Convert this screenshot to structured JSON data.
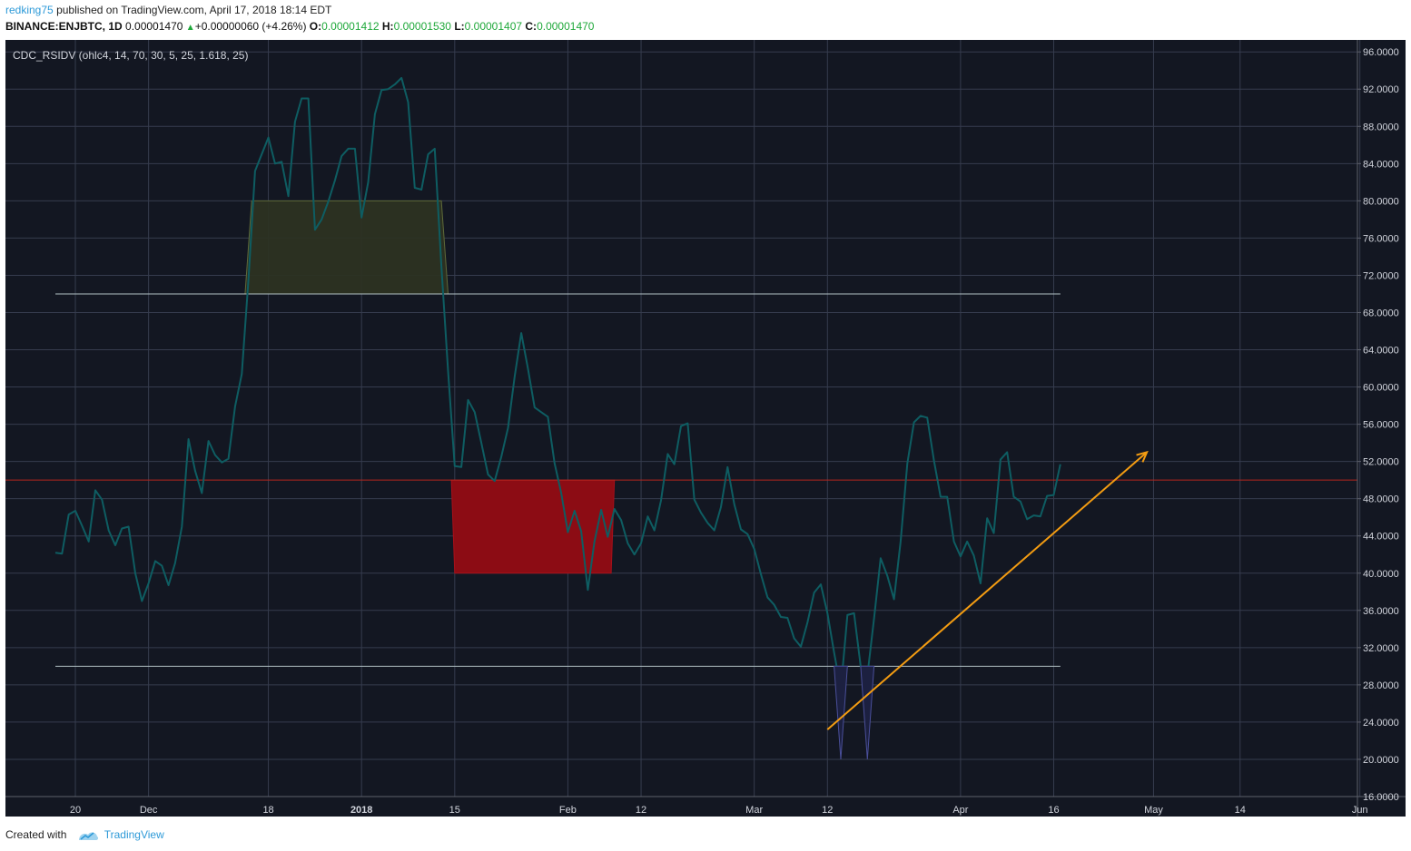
{
  "header": {
    "author": "redking75",
    "published_text": "published on TradingView.com, April 17, 2018 18:14 EDT",
    "symbol": "BINANCE:ENJBTC, 1D",
    "price": "0.00001470",
    "change": "+0.00000060 (+4.26%)",
    "open_label": "O:",
    "open": "0.00001412",
    "high_label": "H:",
    "high": "0.00001530",
    "low_label": "L:",
    "low": "0.00001407",
    "close_label": "C:",
    "close": "0.00001470"
  },
  "indicator_label": "CDC_RSIDV (ohlc4, 14, 70, 30, 5, 25, 1.618, 25)",
  "footer": {
    "created_with": "Created with",
    "brand": "TradingView"
  },
  "colors": {
    "background": "#131722",
    "grid": "#363c4e",
    "rsi_line": "#0e5d62",
    "overbought_zone": "#2c3122",
    "oversold_zone": "#8c0c14",
    "midline": "#b5261e",
    "bound_line": "#b2c1c4",
    "arrow": "#f39c12",
    "divergence": "#4a4f9a",
    "axis_text": "#d1d4dc"
  },
  "chart_data": {
    "type": "line",
    "y_axis_ticks": [
      "96.0000",
      "92.0000",
      "88.0000",
      "84.0000",
      "80.0000",
      "76.0000",
      "72.0000",
      "68.0000",
      "64.0000",
      "60.0000",
      "56.0000",
      "52.0000",
      "48.0000",
      "44.0000",
      "40.0000",
      "36.0000",
      "32.0000",
      "28.0000",
      "24.0000",
      "20.0000",
      "16.0000"
    ],
    "ylim": [
      16,
      96
    ],
    "x_axis_ticks": [
      {
        "label": "20",
        "day": 0,
        "bold": false
      },
      {
        "label": "Dec",
        "day": 11,
        "bold": false
      },
      {
        "label": "18",
        "day": 29,
        "bold": false
      },
      {
        "label": "2018",
        "day": 43,
        "bold": true
      },
      {
        "label": "15",
        "day": 57,
        "bold": false
      },
      {
        "label": "Feb",
        "day": 74,
        "bold": false
      },
      {
        "label": "12",
        "day": 85,
        "bold": false
      },
      {
        "label": "Mar",
        "day": 102,
        "bold": false
      },
      {
        "label": "12",
        "day": 113,
        "bold": false
      },
      {
        "label": "Apr",
        "day": 133,
        "bold": false
      },
      {
        "label": "16",
        "day": 147,
        "bold": false
      },
      {
        "label": "May",
        "day": 162,
        "bold": false
      },
      {
        "label": "14",
        "day": 175,
        "bold": false
      },
      {
        "label": "Jun",
        "day": 193,
        "bold": false
      }
    ],
    "xlim": [
      -11,
      203
    ],
    "series": [
      {
        "values": [
          [
            -3,
            42.2
          ],
          [
            -2,
            42.1
          ],
          [
            -1,
            46.3
          ],
          [
            0,
            46.7
          ],
          [
            1,
            45.1
          ],
          [
            2,
            43.4
          ],
          [
            3,
            48.9
          ],
          [
            4,
            47.9
          ],
          [
            5,
            44.6
          ],
          [
            6,
            43.0
          ],
          [
            7,
            44.8
          ],
          [
            8,
            45.0
          ],
          [
            9,
            40.0
          ],
          [
            10,
            37.0
          ],
          [
            11,
            38.9
          ],
          [
            12,
            41.3
          ],
          [
            13,
            40.8
          ],
          [
            14,
            38.7
          ],
          [
            15,
            41.1
          ],
          [
            16,
            45.0
          ],
          [
            17,
            54.4
          ],
          [
            18,
            51.0
          ],
          [
            19,
            48.6
          ],
          [
            20,
            54.2
          ],
          [
            21,
            52.7
          ],
          [
            22,
            51.9
          ],
          [
            23,
            52.3
          ],
          [
            24,
            57.9
          ],
          [
            25,
            61.4
          ],
          [
            26,
            71.5
          ],
          [
            27,
            83.2
          ],
          [
            28,
            85.0
          ],
          [
            29,
            86.8
          ],
          [
            30,
            84.0
          ],
          [
            31,
            84.2
          ],
          [
            32,
            80.5
          ],
          [
            33,
            88.5
          ],
          [
            34,
            91.0
          ],
          [
            35,
            91.0
          ],
          [
            36,
            76.9
          ],
          [
            37,
            78.0
          ],
          [
            38,
            79.9
          ],
          [
            39,
            82.2
          ],
          [
            40,
            84.8
          ],
          [
            41,
            85.6
          ],
          [
            42,
            85.6
          ],
          [
            43,
            78.2
          ],
          [
            44,
            82.0
          ],
          [
            45,
            89.3
          ],
          [
            46,
            91.9
          ],
          [
            47,
            92.0
          ],
          [
            48,
            92.5
          ],
          [
            49,
            93.2
          ],
          [
            50,
            90.6
          ],
          [
            51,
            81.4
          ],
          [
            52,
            81.2
          ],
          [
            53,
            85.0
          ],
          [
            54,
            85.6
          ],
          [
            55,
            73.0
          ],
          [
            56,
            61.7
          ],
          [
            57,
            51.5
          ],
          [
            58,
            51.4
          ],
          [
            59,
            58.6
          ],
          [
            60,
            57.3
          ],
          [
            61,
            54.0
          ],
          [
            62,
            50.6
          ],
          [
            63,
            49.9
          ],
          [
            64,
            52.5
          ],
          [
            65,
            55.6
          ],
          [
            66,
            61.1
          ],
          [
            67,
            65.8
          ],
          [
            68,
            62.0
          ],
          [
            69,
            57.8
          ],
          [
            70,
            57.3
          ],
          [
            71,
            56.8
          ],
          [
            72,
            51.8
          ],
          [
            73,
            48.6
          ],
          [
            74,
            44.4
          ],
          [
            75,
            46.7
          ],
          [
            76,
            44.5
          ],
          [
            77,
            38.2
          ],
          [
            78,
            43.4
          ],
          [
            79,
            46.8
          ],
          [
            80,
            43.9
          ],
          [
            81,
            46.9
          ],
          [
            82,
            45.7
          ],
          [
            83,
            43.2
          ],
          [
            84,
            42.0
          ],
          [
            85,
            43.2
          ],
          [
            86,
            46.1
          ],
          [
            87,
            44.6
          ],
          [
            88,
            47.8
          ],
          [
            89,
            52.8
          ],
          [
            90,
            51.7
          ],
          [
            91,
            55.8
          ],
          [
            92,
            56.1
          ],
          [
            93,
            47.9
          ],
          [
            94,
            46.5
          ],
          [
            95,
            45.4
          ],
          [
            96,
            44.6
          ],
          [
            97,
            47.1
          ],
          [
            98,
            51.4
          ],
          [
            99,
            47.4
          ],
          [
            100,
            44.7
          ],
          [
            101,
            44.2
          ],
          [
            102,
            42.6
          ],
          [
            103,
            39.9
          ],
          [
            104,
            37.4
          ],
          [
            105,
            36.6
          ],
          [
            106,
            35.3
          ],
          [
            107,
            35.2
          ],
          [
            108,
            33.0
          ],
          [
            109,
            32.1
          ],
          [
            110,
            34.7
          ],
          [
            111,
            37.9
          ],
          [
            112,
            38.8
          ],
          [
            113,
            35.7
          ],
          [
            114,
            31.5
          ],
          [
            115,
            27.5
          ],
          [
            116,
            35.5
          ],
          [
            117,
            35.7
          ],
          [
            118,
            30.0
          ],
          [
            119,
            29.0
          ],
          [
            120,
            35.1
          ],
          [
            121,
            41.6
          ],
          [
            122,
            39.7
          ],
          [
            123,
            37.2
          ],
          [
            124,
            43.4
          ],
          [
            125,
            51.8
          ],
          [
            126,
            56.2
          ],
          [
            127,
            56.9
          ],
          [
            128,
            56.7
          ],
          [
            129,
            52.1
          ],
          [
            130,
            48.2
          ],
          [
            131,
            48.2
          ],
          [
            132,
            43.4
          ],
          [
            133,
            41.8
          ],
          [
            134,
            43.4
          ],
          [
            135,
            41.9
          ],
          [
            136,
            38.9
          ],
          [
            137,
            45.9
          ],
          [
            138,
            44.3
          ],
          [
            139,
            52.2
          ],
          [
            140,
            53.0
          ],
          [
            141,
            48.2
          ],
          [
            142,
            47.7
          ],
          [
            143,
            45.8
          ],
          [
            144,
            46.2
          ],
          [
            145,
            46.1
          ],
          [
            146,
            48.3
          ],
          [
            147,
            48.4
          ],
          [
            148,
            51.7
          ]
        ]
      }
    ],
    "upper_band": 70,
    "lower_band": 30,
    "midline": 50,
    "band_x_range": [
      -3,
      148
    ],
    "overbought_zone": [
      [
        25.5,
        70
      ],
      [
        26.5,
        80
      ],
      [
        55,
        80
      ],
      [
        56,
        70
      ]
    ],
    "oversold_zone": [
      [
        56.5,
        50
      ],
      [
        57,
        40
      ],
      [
        80.5,
        40
      ],
      [
        81,
        50
      ]
    ],
    "divergence_spikes": [
      [
        [
          114,
          30
        ],
        [
          115,
          20
        ],
        [
          116,
          30
        ]
      ],
      [
        [
          118,
          30
        ],
        [
          119,
          20
        ],
        [
          120,
          30
        ]
      ]
    ],
    "trend_arrow": {
      "from": [
        113,
        23.2
      ],
      "to": [
        161,
        53.0
      ]
    }
  }
}
